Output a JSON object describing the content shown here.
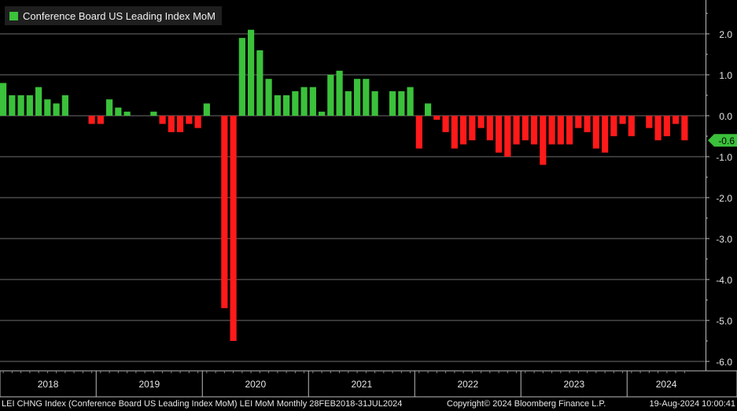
{
  "legend": {
    "label": "Conference Board US Leading Index MoM",
    "color": "#3bc13b"
  },
  "colors": {
    "positive": "#3bc13b",
    "negative": "#ff1a1a",
    "background": "#000000",
    "grid": "#6e6e6e",
    "last_value_label": "#3bc13b"
  },
  "last_value": {
    "label": "-0.6"
  },
  "footer": {
    "left": "LEI CHNG Index (Conference Board US Leading Index MoM) LEI MoM  Monthly 28FEB2018-31JUL2024",
    "middle": "Copyright© 2024 Bloomberg Finance L.P.",
    "right": "19-Aug-2024 10:00:41"
  },
  "chart_data": {
    "type": "bar",
    "title": "",
    "xlabel": "",
    "ylabel": "",
    "ylim": [
      -6.2,
      2.8
    ],
    "yticks": [
      "2.0",
      "1.0",
      "0.0",
      "-1.0",
      "-2.0",
      "-3.0",
      "-4.0",
      "-5.0",
      "-6.0"
    ],
    "ytick_values": [
      2,
      1,
      0,
      -1,
      -2,
      -3,
      -4,
      -5,
      -6
    ],
    "x_year_labels": [
      "2018",
      "2019",
      "2020",
      "2021",
      "2022",
      "2023",
      "2024"
    ],
    "grid": "horizontal",
    "legend_position": "top-left",
    "categories": [
      "2018-02",
      "2018-03",
      "2018-04",
      "2018-05",
      "2018-06",
      "2018-07",
      "2018-08",
      "2018-09",
      "2018-10",
      "2018-11",
      "2018-12",
      "2019-01",
      "2019-02",
      "2019-03",
      "2019-04",
      "2019-05",
      "2019-06",
      "2019-07",
      "2019-08",
      "2019-09",
      "2019-10",
      "2019-11",
      "2019-12",
      "2020-01",
      "2020-02",
      "2020-03",
      "2020-04",
      "2020-05",
      "2020-06",
      "2020-07",
      "2020-08",
      "2020-09",
      "2020-10",
      "2020-11",
      "2020-12",
      "2021-01",
      "2021-02",
      "2021-03",
      "2021-04",
      "2021-05",
      "2021-06",
      "2021-07",
      "2021-08",
      "2021-09",
      "2021-10",
      "2021-11",
      "2021-12",
      "2022-01",
      "2022-02",
      "2022-03",
      "2022-04",
      "2022-05",
      "2022-06",
      "2022-07",
      "2022-08",
      "2022-09",
      "2022-10",
      "2022-11",
      "2022-12",
      "2023-01",
      "2023-02",
      "2023-03",
      "2023-04",
      "2023-05",
      "2023-06",
      "2023-07",
      "2023-08",
      "2023-09",
      "2023-10",
      "2023-11",
      "2023-12",
      "2024-01",
      "2024-02",
      "2024-03",
      "2024-04",
      "2024-05",
      "2024-06",
      "2024-07"
    ],
    "values": [
      0.8,
      0.5,
      0.5,
      0.5,
      0.7,
      0.4,
      0.3,
      0.5,
      0.0,
      0.0,
      -0.2,
      -0.2,
      0.4,
      0.2,
      0.1,
      0.0,
      0.0,
      0.1,
      -0.2,
      -0.4,
      -0.4,
      -0.2,
      -0.3,
      0.3,
      0.0,
      -4.7,
      -5.5,
      1.9,
      2.1,
      1.6,
      0.9,
      0.5,
      0.5,
      0.6,
      0.7,
      0.7,
      0.1,
      1.0,
      1.1,
      0.6,
      0.9,
      0.9,
      0.6,
      0.0,
      0.6,
      0.6,
      0.7,
      -0.8,
      0.3,
      -0.1,
      -0.4,
      -0.8,
      -0.7,
      -0.6,
      -0.3,
      -0.6,
      -0.9,
      -1.0,
      -0.7,
      -0.6,
      -0.7,
      -1.2,
      -0.7,
      -0.7,
      -0.7,
      -0.3,
      -0.4,
      -0.8,
      -0.9,
      -0.5,
      -0.2,
      -0.5,
      0.0,
      -0.3,
      -0.6,
      -0.5,
      -0.2,
      -0.6
    ]
  }
}
